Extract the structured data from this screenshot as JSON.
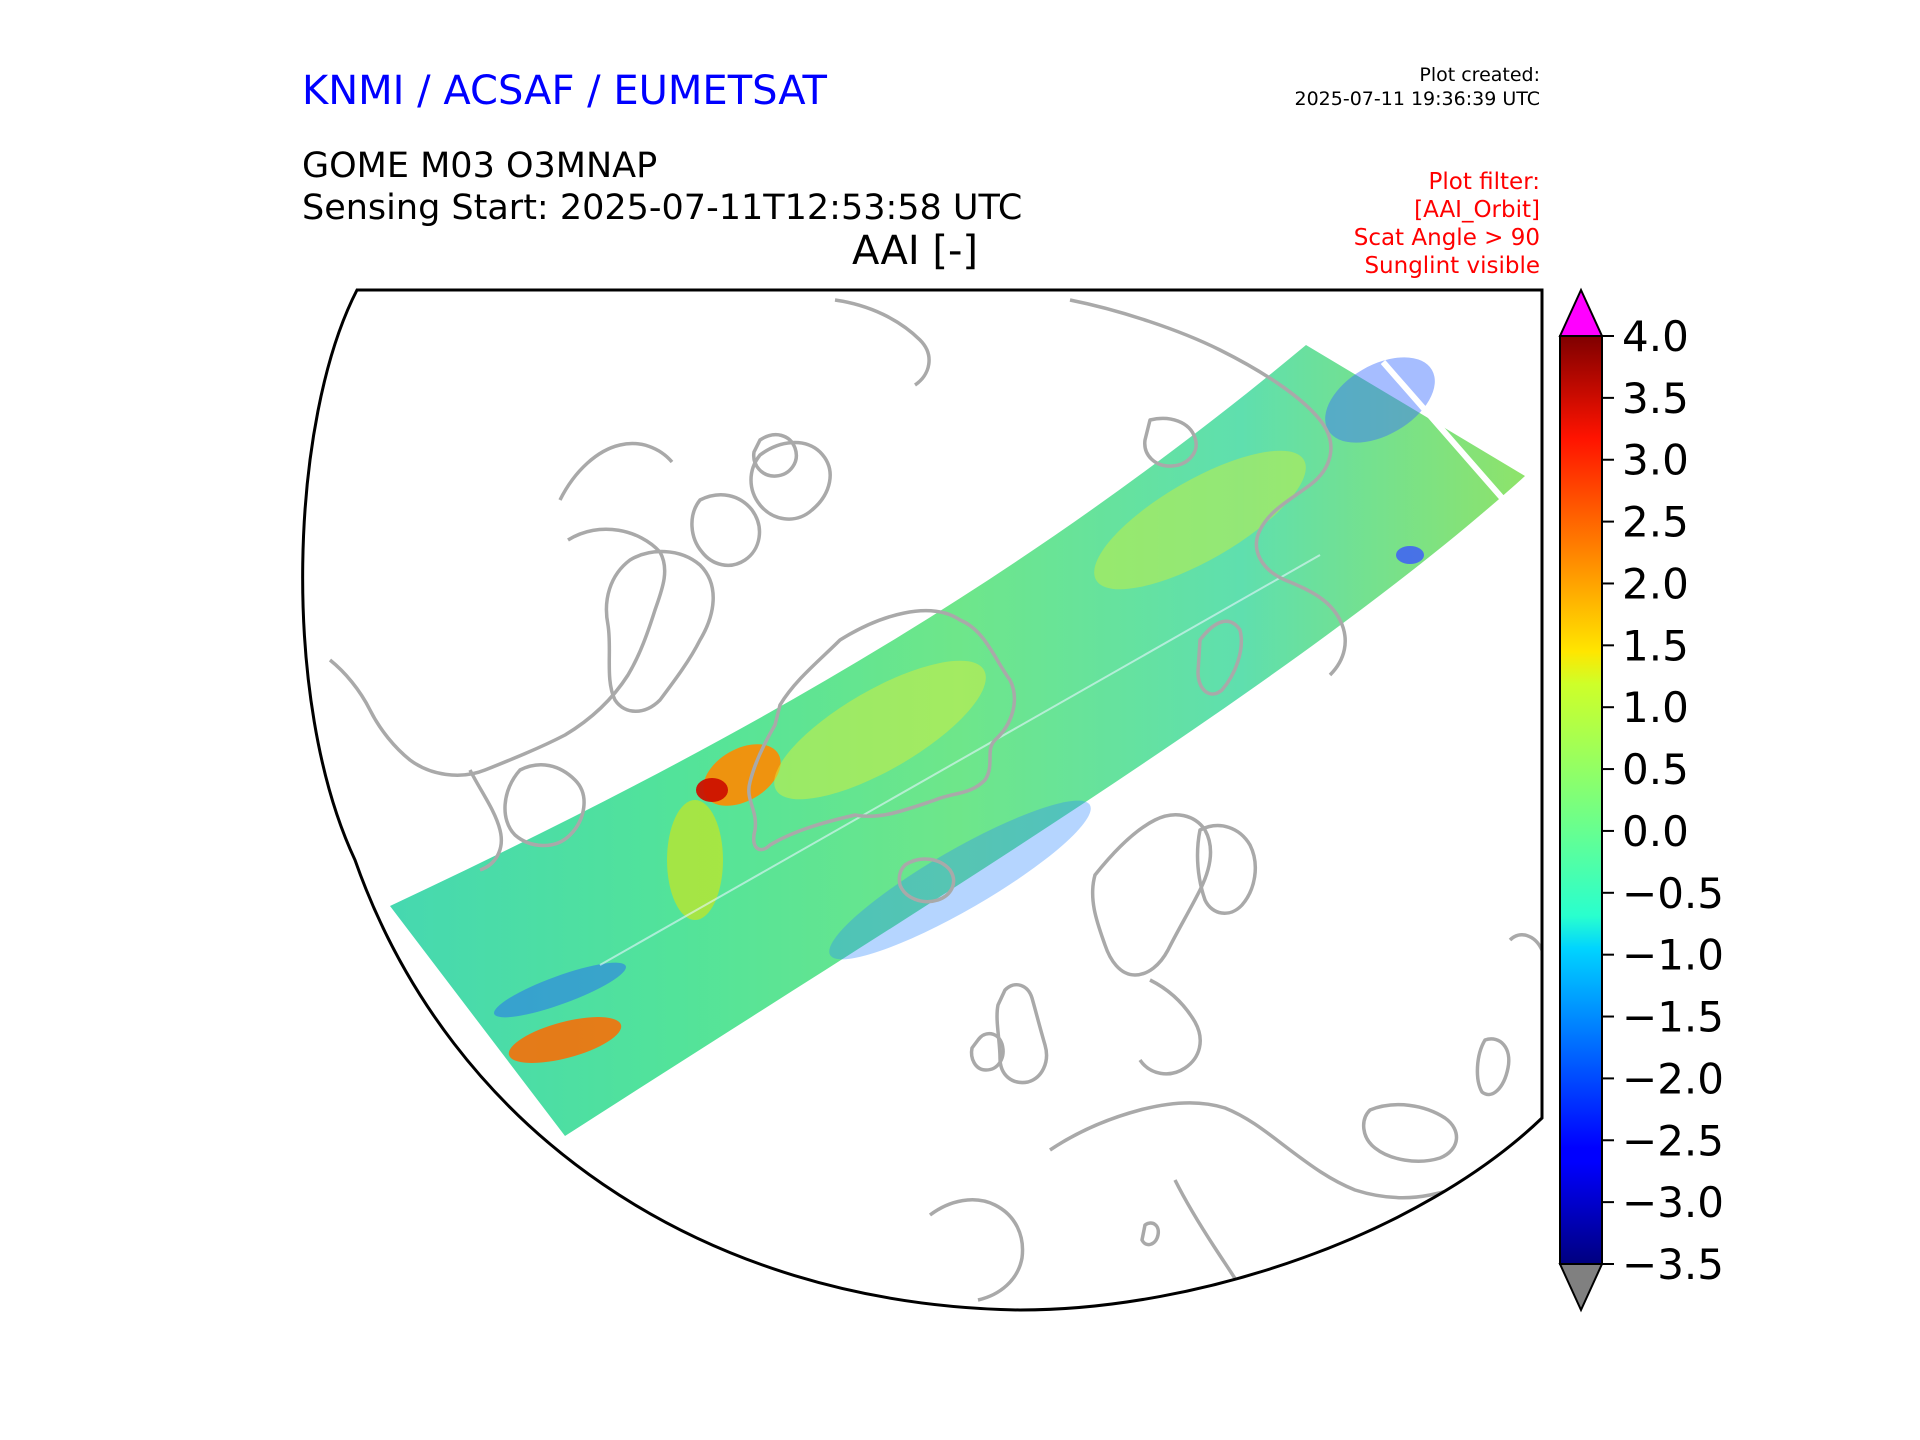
{
  "header": {
    "organization": "KNMI / ACSAF / EUMETSAT",
    "plot_created_label": "Plot created:",
    "plot_created_time": "2025-07-11 19:36:39 UTC",
    "product": "GOME M03 O3MNAP",
    "sensing_start": "Sensing Start: 2025-07-11T12:53:58 UTC",
    "quantity": "AAI [-]"
  },
  "plot_filter": [
    "Plot filter:",
    "[AAI_Orbit]",
    "Scat Angle > 90",
    "Sunglint visible"
  ],
  "colors": {
    "organization": "#0000ff",
    "filter_text": "#ff0000",
    "coastline": "#a9a9a9",
    "over_extend": "#ff00ff",
    "under_extend": "#808080"
  },
  "colorbar": {
    "colormap": "jet",
    "min": -3.5,
    "max": 4.0,
    "ticks": [
      "4.0",
      "3.5",
      "3.0",
      "2.5",
      "2.0",
      "1.5",
      "1.0",
      "0.5",
      "0.0",
      "−0.5",
      "−1.0",
      "−1.5",
      "−2.0",
      "−2.5",
      "−3.0",
      "−3.5"
    ],
    "extend": "both"
  },
  "map": {
    "projection": "polar stereographic (north)",
    "features": [
      "coastlines",
      "satellite swath"
    ],
    "swath_variable": "AAI"
  }
}
